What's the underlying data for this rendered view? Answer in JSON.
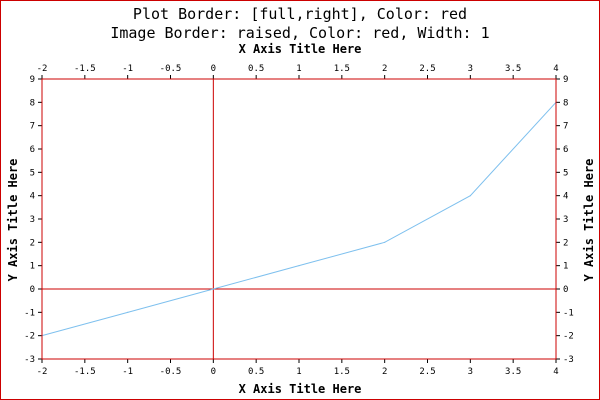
{
  "chart_data": {
    "type": "line",
    "title_lines": [
      "Plot Border: [full,right], Color: red",
      "Image Border: raised, Color: red, Width: 1"
    ],
    "xlabel_top": "X Axis Title Here",
    "xlabel_bottom": "X Axis Title Here",
    "ylabel_left": "Y Axis Title Here",
    "ylabel_right": "Y Axis Title Here",
    "xlim": [
      -2,
      4
    ],
    "ylim": [
      -3,
      9
    ],
    "x_ticks": [
      -2,
      -1.5,
      -1,
      -0.5,
      0,
      0.5,
      1,
      1.5,
      2,
      2.5,
      3,
      3.5,
      4
    ],
    "y_ticks": [
      -3,
      -2,
      -1,
      0,
      1,
      2,
      3,
      4,
      5,
      6,
      7,
      8,
      9
    ],
    "grid": false,
    "series": [
      {
        "x": [
          -2,
          -1,
          0,
          1,
          2,
          3,
          4
        ],
        "y": [
          -2,
          -1,
          0,
          1,
          2,
          4,
          8
        ]
      }
    ]
  },
  "colors": {
    "border": "#cc0000",
    "series": "#7ec0ee",
    "text": "#000000"
  }
}
